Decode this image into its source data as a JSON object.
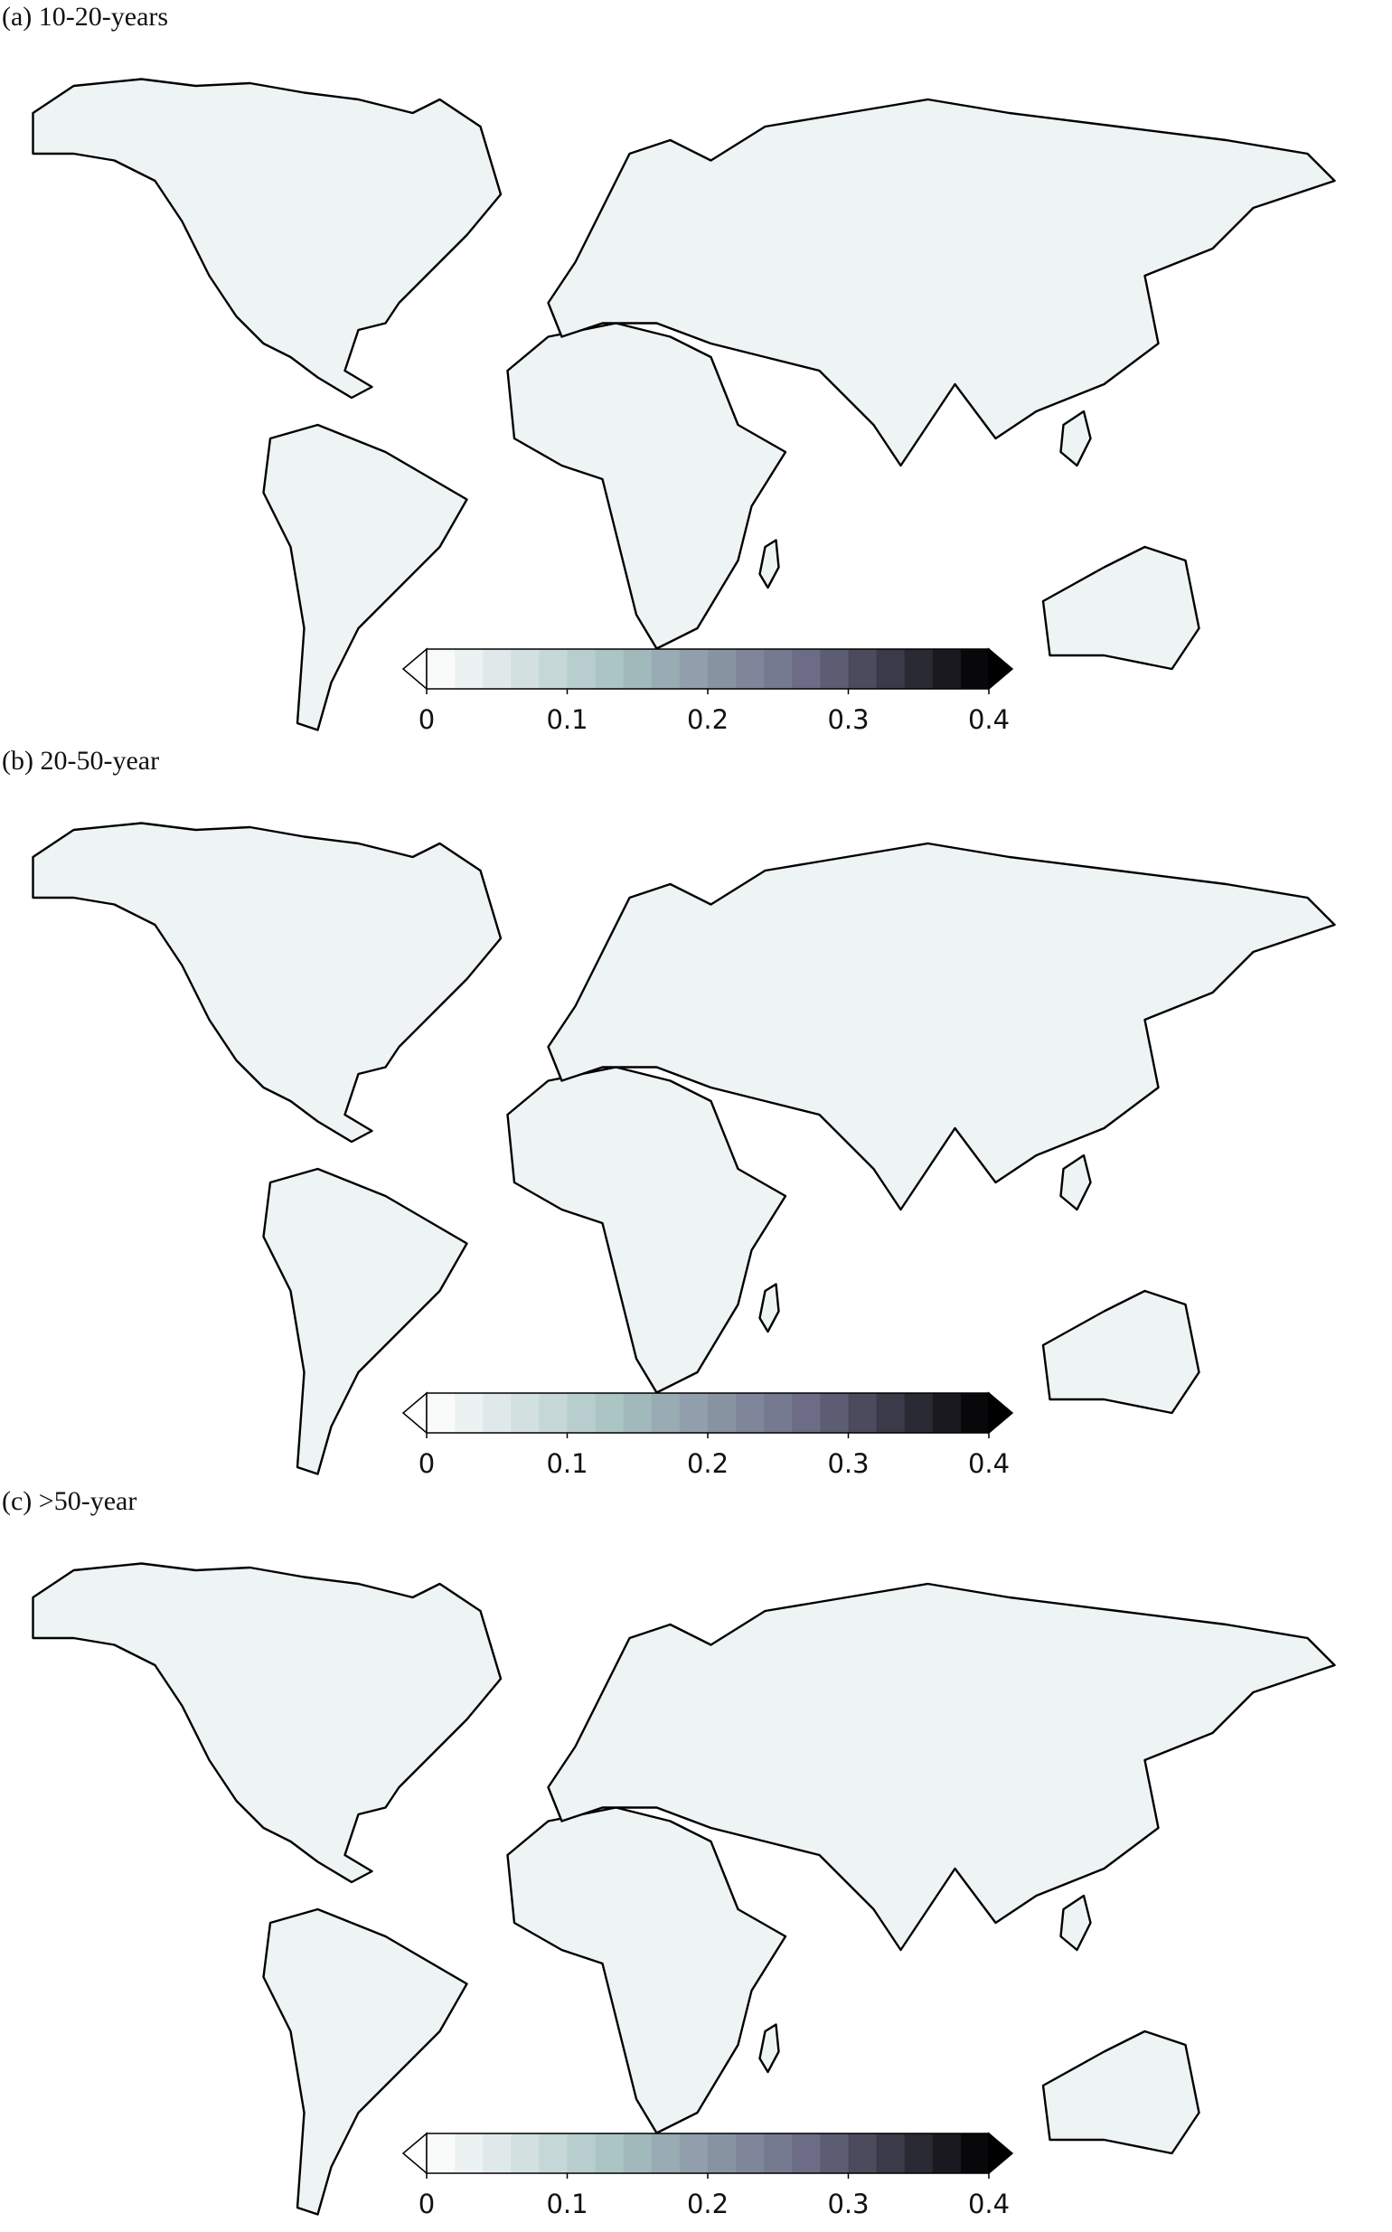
{
  "panels": [
    {
      "title": "(a) 10-20-years",
      "colorbar": {
        "lim": [
          0,
          0.4
        ],
        "ticks": [
          0,
          0.1,
          0.2,
          0.3,
          0.4
        ],
        "extend": "both"
      }
    },
    {
      "title": "(b) 20-50-year",
      "colorbar": {
        "lim": [
          0,
          0.4
        ],
        "ticks": [
          0,
          0.1,
          0.2,
          0.3,
          0.4
        ],
        "extend": "both"
      }
    },
    {
      "title": "(c) >50-year",
      "colorbar": {
        "lim": [
          0,
          0.4
        ],
        "ticks": [
          0,
          0.1,
          0.2,
          0.3,
          0.4
        ],
        "extend": "both"
      }
    }
  ],
  "colormap": [
    "#ffffff",
    "#a9c3c3",
    "#6f6f8a",
    "#000000"
  ]
}
